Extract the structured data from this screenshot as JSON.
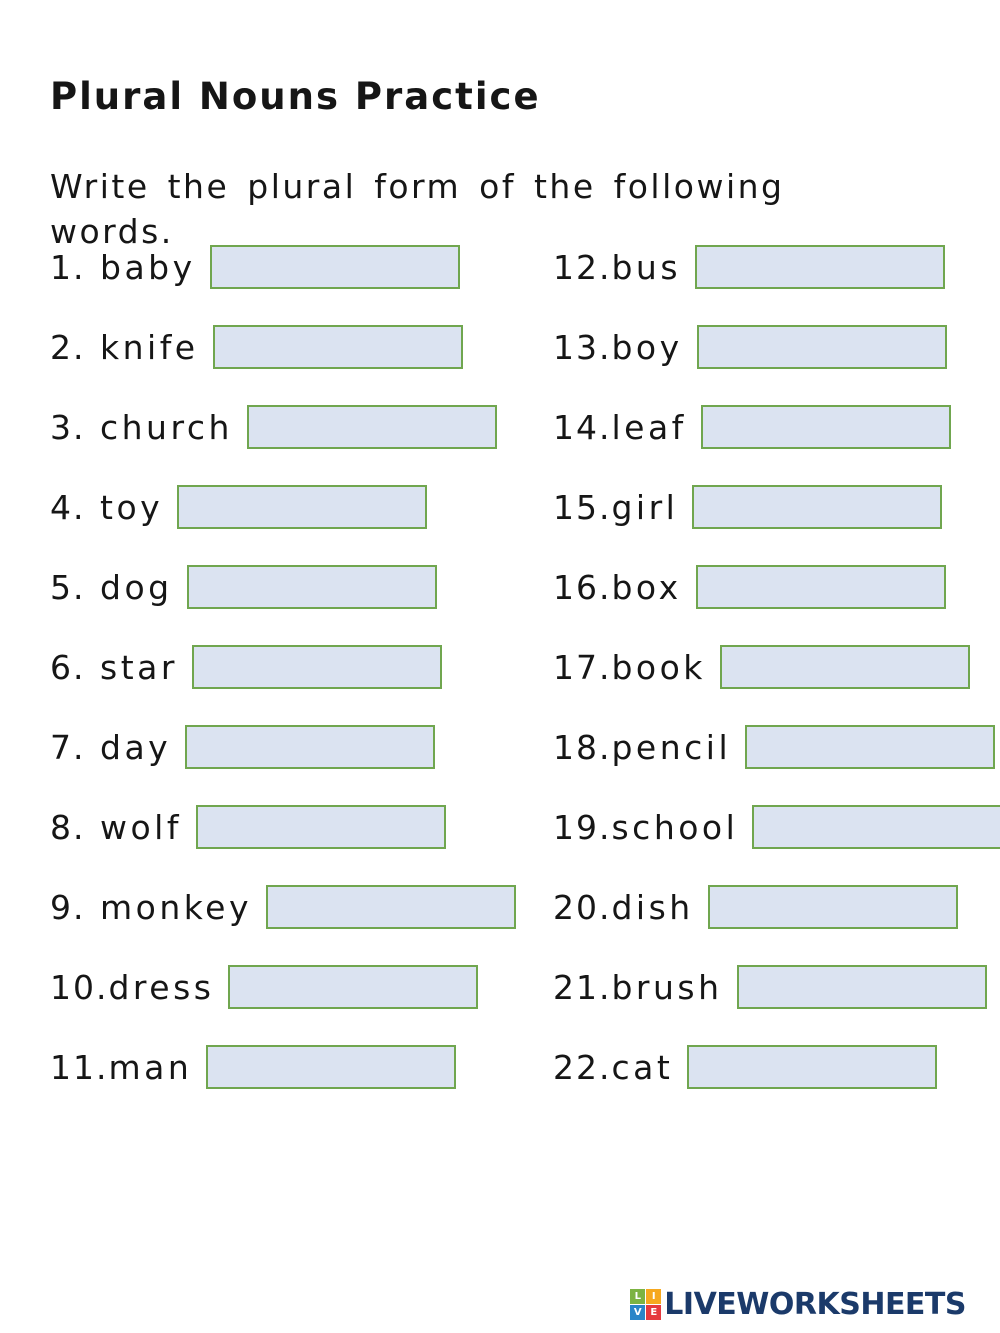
{
  "page": {
    "title": "Plural Nouns Practice",
    "instructions": "Write the plural form of the following\nwords."
  },
  "colors": {
    "answer_box_fill": "#dbe3f1",
    "answer_box_border": "#70a64f",
    "text": "#161616",
    "brand_navy": "#1b3a6a"
  },
  "items": {
    "left": [
      {
        "number": "1.",
        "word": "baby",
        "answer": ""
      },
      {
        "number": "2.",
        "word": "knife",
        "answer": ""
      },
      {
        "number": "3.",
        "word": "church",
        "answer": ""
      },
      {
        "number": "4.",
        "word": "toy",
        "answer": ""
      },
      {
        "number": "5.",
        "word": "dog",
        "answer": ""
      },
      {
        "number": "6.",
        "word": "star",
        "answer": ""
      },
      {
        "number": "7.",
        "word": "day",
        "answer": ""
      },
      {
        "number": "8.",
        "word": "wolf",
        "answer": ""
      },
      {
        "number": "9.",
        "word": "monkey",
        "answer": ""
      },
      {
        "number": "10.",
        "word": "dress",
        "answer": ""
      },
      {
        "number": "11.",
        "word": "man",
        "answer": ""
      }
    ],
    "right": [
      {
        "number": "12.",
        "word": "bus",
        "answer": ""
      },
      {
        "number": "13.",
        "word": "boy",
        "answer": ""
      },
      {
        "number": "14.",
        "word": "leaf",
        "answer": ""
      },
      {
        "number": "15.",
        "word": "girl",
        "answer": ""
      },
      {
        "number": "16.",
        "word": "box",
        "answer": ""
      },
      {
        "number": "17.",
        "word": "book",
        "answer": ""
      },
      {
        "number": "18.",
        "word": "pencil",
        "answer": ""
      },
      {
        "number": "19.",
        "word": "school",
        "answer": ""
      },
      {
        "number": "20.",
        "word": "dish",
        "answer": ""
      },
      {
        "number": "21.",
        "word": "brush",
        "answer": ""
      },
      {
        "number": "22.",
        "word": "cat",
        "answer": ""
      }
    ]
  },
  "footer": {
    "brand": "LIVEWORKSHEETS",
    "logo_squares": [
      {
        "letter": "L",
        "color": "#7cb342"
      },
      {
        "letter": "I",
        "color": "#f6a81f"
      },
      {
        "letter": "V",
        "color": "#2a85c8"
      },
      {
        "letter": "E",
        "color": "#e5393f"
      }
    ]
  }
}
